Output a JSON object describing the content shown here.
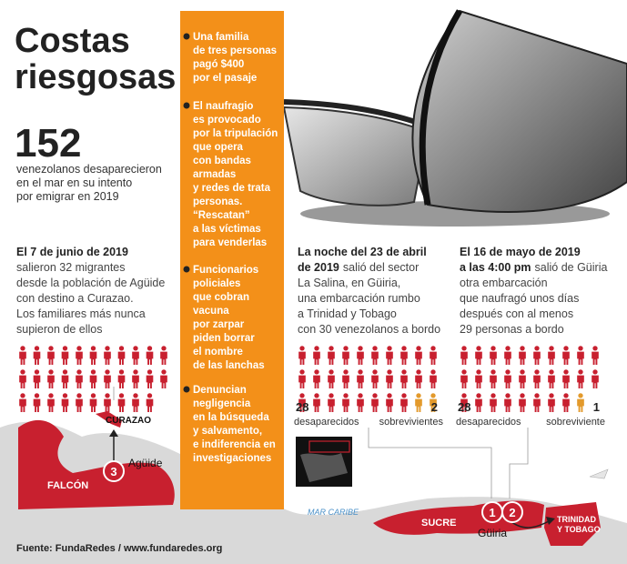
{
  "title": [
    "Costas",
    "riesgosas"
  ],
  "stat": {
    "number": 152,
    "lines": [
      "venezolanos desaparecieron",
      "en el mar en su intento",
      "por emigrar en 2019"
    ]
  },
  "column": {
    "items": [
      [
        "Una familia",
        "de tres personas",
        "pagó $400",
        "por el pasaje"
      ],
      [
        "El naufragio",
        "es provocado",
        "por la tripulación",
        "que opera",
        "con bandas",
        "armadas",
        "y redes de trata",
        "personas.",
        "“Rescatan”",
        "a las víctimas",
        "para venderlas"
      ],
      [
        "Funcionarios",
        "policiales",
        "que cobran",
        "vacuna",
        "por zarpar",
        "piden borrar",
        "el nombre",
        "de las lanchas"
      ],
      [
        "Denuncian",
        "negligencia",
        "en la búsqueda",
        "y salvamento,",
        "e indiferencia en",
        "investigaciones"
      ]
    ]
  },
  "stories": [
    {
      "lines": [
        {
          "bold": "El 7 de junio de 2019"
        },
        {
          "text": "salieron 32 migrantes"
        },
        {
          "text": "desde la población de Agüide"
        },
        {
          "text": "con destino a Curazao."
        },
        {
          "text": "Los familiares más nunca"
        },
        {
          "text": "supieron de ellos"
        }
      ]
    },
    {
      "lines": [
        {
          "bold": "La noche del 23 de abril"
        },
        {
          "bold": "de 2019",
          "text": "salió del sector"
        },
        {
          "text": "La Salina, en Güiria,"
        },
        {
          "text": "una embarcación rumbo"
        },
        {
          "text": "a Trinidad y Tobago"
        },
        {
          "text": "con 30 venezolanos a bordo"
        }
      ],
      "missing": 28,
      "missing_label": "desaparecidos",
      "survivors": 2,
      "survivors_label": "sobrevivientes"
    },
    {
      "lines": [
        {
          "bold": "El 16 de mayo de 2019"
        },
        {
          "bold": "a las 4:00 pm",
          "text": "salió de Güiria"
        },
        {
          "text": "otra embarcación"
        },
        {
          "text": "que naufragó unos días"
        },
        {
          "text": "después con al menos"
        },
        {
          "text": "29 personas a bordo"
        }
      ],
      "missing": 28,
      "missing_label": "desaparecidos",
      "survivors": 1,
      "survivors_label": "sobreviviente"
    }
  ],
  "map": {
    "curazao": "CURAZAO",
    "aguide": "Agüide",
    "falcon": "FALCÓN",
    "marker_3": "3",
    "sea": "MAR CARIBE",
    "sucre": "SUCRE",
    "marker_1": "1",
    "marker_2": "2",
    "guiria": "Güiria",
    "trinidad": [
      "TRINIDAD",
      "Y TOBAGO"
    ]
  },
  "source": "Fuente: FundaRedes / www.fundaredes.org"
}
